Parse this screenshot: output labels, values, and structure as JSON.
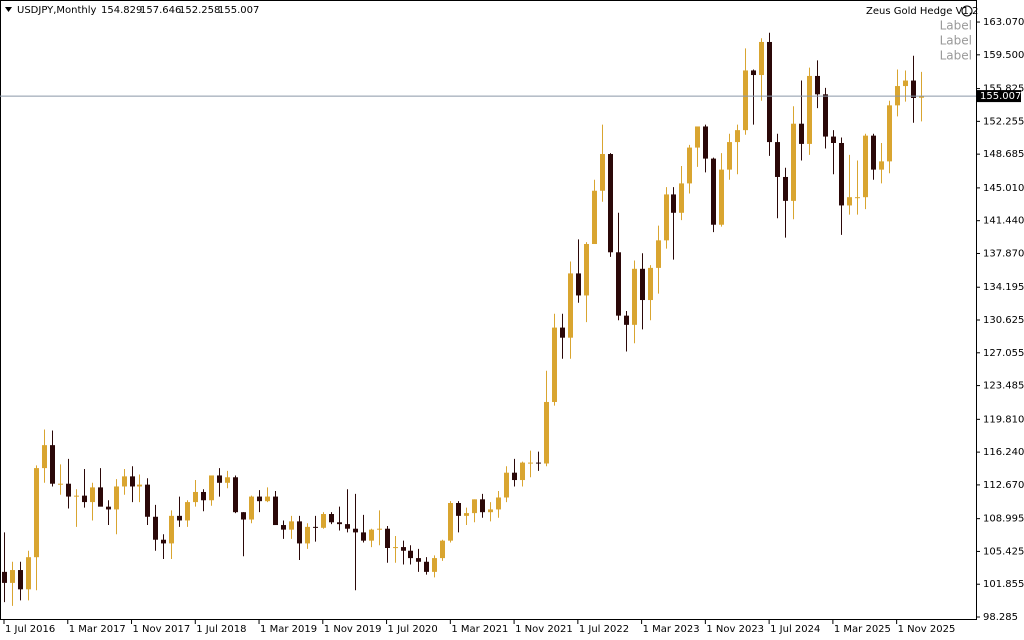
{
  "chart_data": {
    "type": "candlestick",
    "symbol": "USDJPY,Monthly",
    "indicator": "Zeus Gold Hedge V1.2",
    "labels": [
      "Label",
      "Label",
      "Label"
    ],
    "bull_color": "#d9a530",
    "bear_color": "#2b0808",
    "grid": false,
    "categories": [
      "1 Jul 2016",
      null,
      null,
      null,
      null,
      null,
      null,
      null,
      "1 Mar 2017",
      null,
      null,
      null,
      null,
      null,
      null,
      null,
      "1 Nov 2017",
      null,
      null,
      null,
      null,
      null,
      null,
      null,
      "1 Jul 2018",
      null,
      null,
      null,
      null,
      null,
      null,
      null,
      "1 Mar 2019",
      null,
      null,
      null,
      null,
      null,
      null,
      null,
      "1 Nov 2019",
      null,
      null,
      null,
      null,
      null,
      null,
      null,
      "1 Jul 2020",
      null,
      null,
      null,
      null,
      null,
      null,
      null,
      "1 Mar 2021",
      null,
      null,
      null,
      null,
      null,
      null,
      null,
      "1 Nov 2021",
      null,
      null,
      null,
      null,
      null,
      null,
      null,
      "1 Jul 2022",
      null,
      null,
      null,
      null,
      null,
      null,
      null,
      "1 Mar 2023",
      null,
      null,
      null,
      null,
      null,
      null,
      null,
      "1 Nov 2023",
      null,
      null,
      null,
      null,
      null,
      null,
      null,
      "1 Jul 2024",
      null,
      null,
      null,
      null,
      null,
      null,
      null,
      "1 Mar 2025",
      null,
      null,
      null,
      null,
      null,
      null,
      null,
      "1 Nov 2025",
      null,
      null,
      null
    ],
    "open": [
      103.2,
      102.0,
      103.4,
      101.3,
      104.8,
      114.5,
      117.0,
      112.8,
      112.8,
      111.4,
      111.5,
      110.8,
      112.4,
      110.3,
      110.0,
      112.5,
      113.6,
      112.5,
      112.7,
      109.2,
      106.7,
      106.3,
      109.3,
      108.8,
      110.8,
      111.9,
      111.0,
      113.7,
      112.9,
      113.5,
      109.7,
      108.9,
      111.4,
      110.9,
      111.4,
      108.3,
      107.8,
      108.7,
      106.3,
      108.1,
      108.0,
      109.5,
      108.6,
      108.4,
      107.9,
      107.5,
      106.6,
      107.8,
      107.9,
      105.8,
      105.9,
      105.5,
      104.7,
      104.3,
      103.2,
      104.7,
      106.6,
      110.7,
      109.3,
      109.6,
      111.1,
      109.7,
      110.0,
      111.3,
      114.0,
      113.2,
      115.1,
      115.1,
      115.0,
      121.7,
      129.8,
      128.7,
      135.7,
      133.3,
      138.9,
      144.7,
      148.7,
      138.0,
      131.1,
      130.1,
      136.2,
      132.8,
      136.3,
      139.3,
      144.3,
      142.3,
      145.5,
      149.4,
      151.7,
      148.2,
      141.0,
      147.0,
      150.0,
      151.3,
      157.8,
      157.3,
      160.9,
      150.0,
      146.2,
      143.6,
      152.0,
      149.8,
      157.2,
      155.2,
      150.6,
      149.9,
      143.1,
      144.0,
      144.0,
      150.7,
      147.0,
      147.9,
      154.0,
      156.1,
      156.7,
      154.829
    ],
    "high": [
      107.5,
      104.3,
      104.3,
      105.5,
      114.8,
      118.7,
      118.6,
      114.9,
      115.5,
      112.2,
      114.4,
      112.9,
      114.5,
      111.0,
      113.3,
      114.4,
      114.7,
      113.8,
      113.4,
      110.5,
      107.3,
      109.9,
      111.4,
      111.0,
      113.2,
      112.2,
      113.7,
      114.5,
      114.2,
      113.7,
      109.7,
      111.5,
      112.1,
      112.4,
      112.0,
      108.8,
      109.3,
      109.3,
      108.5,
      109.3,
      109.7,
      109.7,
      110.3,
      112.2,
      111.7,
      109.4,
      107.9,
      109.9,
      108.2,
      107.1,
      106.6,
      106.1,
      105.7,
      104.8,
      105.0,
      106.7,
      110.9,
      110.9,
      110.2,
      111.1,
      111.7,
      110.8,
      112.0,
      114.7,
      115.5,
      115.2,
      116.4,
      116.3,
      125.1,
      131.3,
      131.3,
      137.0,
      139.4,
      139.1,
      145.9,
      151.9,
      148.8,
      142.3,
      131.6,
      137.1,
      137.9,
      136.6,
      140.9,
      145.1,
      145.1,
      147.4,
      149.7,
      151.7,
      151.9,
      148.3,
      148.8,
      150.9,
      151.9,
      160.2,
      157.9,
      161.3,
      161.9,
      150.9,
      147.2,
      153.9,
      156.7,
      158.1,
      158.9,
      155.9,
      151.3,
      150.5,
      148.6,
      148.0,
      150.9,
      150.9,
      149.9,
      154.5,
      157.9,
      157.8,
      159.4,
      157.646
    ],
    "low": [
      99.9,
      99.5,
      100.1,
      100.1,
      101.2,
      112.9,
      112.5,
      111.6,
      110.1,
      108.1,
      110.2,
      108.8,
      110.6,
      108.3,
      107.3,
      111.6,
      110.8,
      110.8,
      108.3,
      105.5,
      104.6,
      104.6,
      108.1,
      108.1,
      110.3,
      109.8,
      110.4,
      111.4,
      112.3,
      109.6,
      104.9,
      108.5,
      109.7,
      110.8,
      108.3,
      106.8,
      106.8,
      104.5,
      105.7,
      106.5,
      107.9,
      108.4,
      107.7,
      107.5,
      101.2,
      106.4,
      105.9,
      106.1,
      104.2,
      104.2,
      104.0,
      104.0,
      103.2,
      102.9,
      102.6,
      104.4,
      106.4,
      107.5,
      108.3,
      108.6,
      109.1,
      108.7,
      109.1,
      110.8,
      112.5,
      112.5,
      113.5,
      114.2,
      114.7,
      121.3,
      126.4,
      126.4,
      132.5,
      130.4,
      138.9,
      143.5,
      137.5,
      130.6,
      127.2,
      128.1,
      129.6,
      130.6,
      133.5,
      138.4,
      137.2,
      141.5,
      144.4,
      147.3,
      146.7,
      140.2,
      140.8,
      145.9,
      146.5,
      150.8,
      151.9,
      154.5,
      148.5,
      141.7,
      139.6,
      141.6,
      148.0,
      148.6,
      153.7,
      149.3,
      146.5,
      139.9,
      142.1,
      142.1,
      142.7,
      145.9,
      145.5,
      146.6,
      152.8,
      154.4,
      152.1,
      152.258
    ],
    "close": [
      102.0,
      103.4,
      101.3,
      104.8,
      114.5,
      117.0,
      112.8,
      112.8,
      111.4,
      111.5,
      110.8,
      112.4,
      110.3,
      110.0,
      112.5,
      113.6,
      112.5,
      112.7,
      109.2,
      106.7,
      106.3,
      109.3,
      108.8,
      110.8,
      111.9,
      111.0,
      113.7,
      112.9,
      113.5,
      109.7,
      108.9,
      111.4,
      110.9,
      111.4,
      108.3,
      107.8,
      108.7,
      106.3,
      108.1,
      108.0,
      109.5,
      108.6,
      108.4,
      107.9,
      107.5,
      106.6,
      107.8,
      107.9,
      105.8,
      105.9,
      105.5,
      104.7,
      104.3,
      103.2,
      104.7,
      106.6,
      110.7,
      109.3,
      109.6,
      111.1,
      109.7,
      110.0,
      111.3,
      114.0,
      113.2,
      115.1,
      115.1,
      115.0,
      121.7,
      129.8,
      128.7,
      135.7,
      133.3,
      138.9,
      144.7,
      148.7,
      138.0,
      131.1,
      130.1,
      136.2,
      132.8,
      136.3,
      139.3,
      144.3,
      142.3,
      145.5,
      149.4,
      151.7,
      148.2,
      141.0,
      147.0,
      150.0,
      151.3,
      157.8,
      157.3,
      160.9,
      150.0,
      146.2,
      143.6,
      152.0,
      149.8,
      157.2,
      155.2,
      150.6,
      149.9,
      143.1,
      144.0,
      144.0,
      150.7,
      147.0,
      147.9,
      154.0,
      156.1,
      156.7,
      154.8,
      155.007
    ],
    "ylim": [
      97.96,
      165.47
    ],
    "yticks": [
      98.285,
      101.855,
      105.425,
      108.995,
      {
        "value": 112.67,
        "label": "112.670"
      },
      {
        "value": 116.24,
        "label": "116.240"
      },
      {
        "value": 119.81,
        "label": "119.810"
      },
      123.485,
      127.055,
      130.625,
      134.195,
      {
        "value": 137.87,
        "label": "137.870"
      },
      {
        "value": 141.44,
        "label": "141.440"
      },
      {
        "value": 145.01,
        "label": "145.010"
      },
      148.685,
      152.255,
      155.825,
      {
        "value": 159.5,
        "label": "159.500"
      },
      {
        "value": 163.07,
        "label": "163.070"
      }
    ]
  }
}
